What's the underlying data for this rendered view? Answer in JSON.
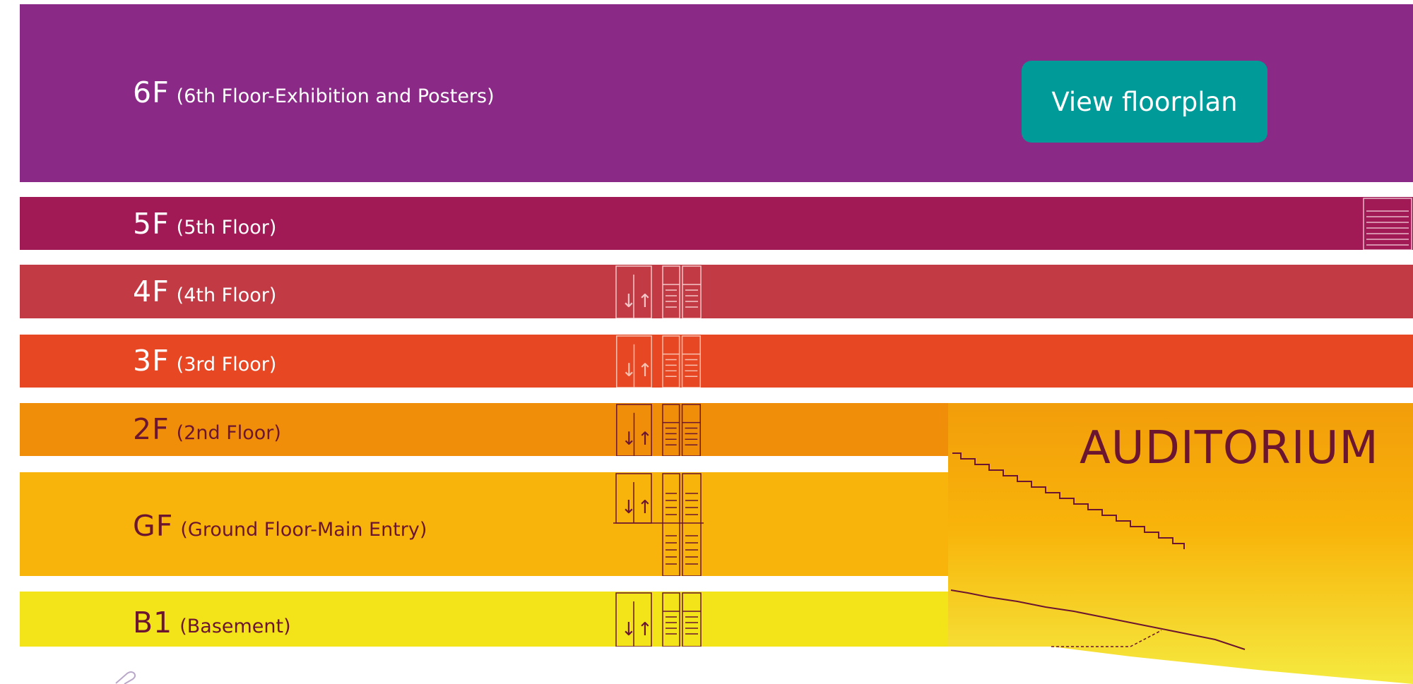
{
  "floors": [
    {
      "id": "6F",
      "code": "6F",
      "desc": "(6th Floor-Exhibition and Posters)",
      "color": "#8a2a86"
    },
    {
      "id": "5F",
      "code": "5F",
      "desc": "(5th Floor)",
      "color": "#a21a55"
    },
    {
      "id": "4F",
      "code": "4F",
      "desc": "(4th Floor)",
      "color": "#c23a44"
    },
    {
      "id": "3F",
      "code": "3F",
      "desc": "(3rd Floor)",
      "color": "#e84724"
    },
    {
      "id": "2F",
      "code": "2F",
      "desc": "(2nd Floor)",
      "color": "#f08e0a"
    },
    {
      "id": "GF",
      "code": "GF",
      "desc": "(Ground Floor-Main Entry)",
      "color": "#f8b40a"
    },
    {
      "id": "B1",
      "code": "B1",
      "desc": "(Basement)",
      "color": "#f2e419"
    }
  ],
  "view_floorplan_button": {
    "label": "View floorplan",
    "color": "#009a98"
  },
  "auditorium": {
    "label": "AUDITORIUM"
  },
  "icons": {
    "elevator": "elevator-icon",
    "stairs": "stairs-icon",
    "paperclip": "paperclip-icon"
  }
}
